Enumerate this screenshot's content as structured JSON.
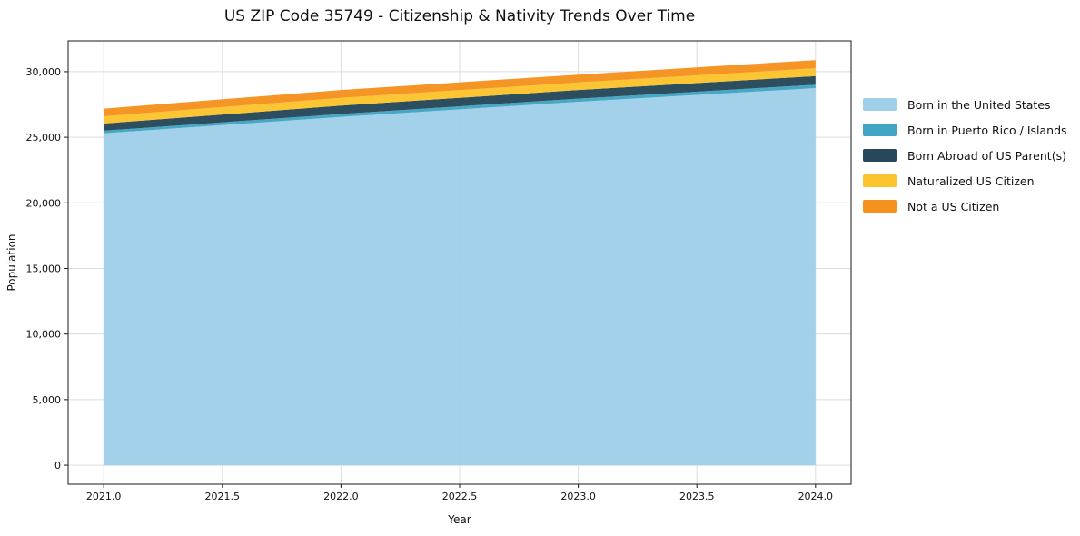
{
  "title": "US ZIP Code 35749 - Citizenship & Nativity Trends Over Time",
  "chart_data": {
    "type": "area",
    "stacked": true,
    "title": "US ZIP Code 35749 - Citizenship & Nativity Trends Over Time",
    "xlabel": "Year",
    "ylabel": "Population",
    "x": [
      2021,
      2022,
      2023,
      2024
    ],
    "series": [
      {
        "name": "Born in the United States",
        "color": "#a0cfe8",
        "values": [
          25300,
          26550,
          27700,
          28750
        ]
      },
      {
        "name": "Born in Puerto Rico / Islands",
        "color": "#41a5c4",
        "values": [
          200,
          225,
          245,
          255
        ]
      },
      {
        "name": "Born Abroad of US Parent(s)",
        "color": "#26485a",
        "values": [
          550,
          640,
          660,
          660
        ]
      },
      {
        "name": "Naturalized US Citizen",
        "color": "#fbc32d",
        "values": [
          550,
          590,
          575,
          600
        ]
      },
      {
        "name": "Not a US Citizen",
        "color": "#f5921e",
        "values": [
          585,
          595,
          595,
          615
        ]
      }
    ],
    "x_ticks": [
      2021.0,
      2021.5,
      2022.0,
      2022.5,
      2023.0,
      2023.5,
      2024.0
    ],
    "x_tick_labels": [
      "2021.0",
      "2021.5",
      "2022.0",
      "2022.5",
      "2023.0",
      "2023.5",
      "2024.0"
    ],
    "y_ticks": [
      0,
      5000,
      10000,
      15000,
      20000,
      25000,
      30000
    ],
    "y_tick_labels": [
      "0",
      "5,000",
      "10,000",
      "15,000",
      "20,000",
      "25,000",
      "30,000"
    ],
    "xlim": [
      2020.85,
      2024.15
    ],
    "ylim": [
      -1450,
      32350
    ],
    "grid": true,
    "legend_position": "right",
    "grid_color": "#dcdcdc",
    "spine_color": "#1a1a1a"
  }
}
